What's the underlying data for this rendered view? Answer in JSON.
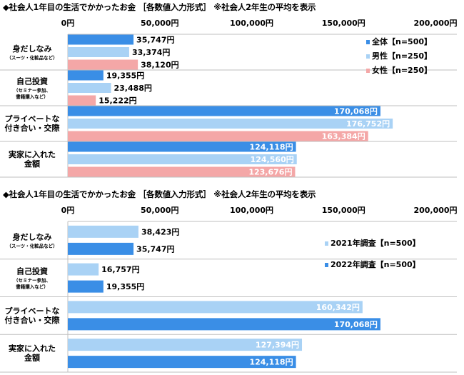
{
  "chart_data": [
    {
      "type": "bar",
      "orientation": "horizontal",
      "title": "◆社会人1年目の生活でかかったお金 ［各数値入力形式］ ※社会人2年生の平均を表示",
      "xlim": [
        0,
        200000
      ],
      "ticks": [
        "0円",
        "50,000円",
        "100,000円",
        "150,000円",
        "200,000円"
      ],
      "tick_values": [
        0,
        50000,
        100000,
        150000,
        200000
      ],
      "grid": "horizontal separators between categories",
      "legend_position": "top-right",
      "categories": [
        {
          "name": [
            "身だしなみ"
          ],
          "sub": [
            "（スーツ・化粧品など）"
          ]
        },
        {
          "name": [
            "自己投資"
          ],
          "sub": [
            "（セミナー参加、",
            "書籍購入など）"
          ]
        },
        {
          "name": [
            "プライベートな",
            "付き合い・交際"
          ],
          "sub": []
        },
        {
          "name": [
            "実家に入れた",
            "金額"
          ],
          "sub": []
        }
      ],
      "series": [
        {
          "name": "全体【n=500】",
          "color": "#3a8ee6",
          "values": [
            35747,
            19355,
            170068,
            124118
          ],
          "labels": [
            "35,747円",
            "19,355円",
            "170,068円",
            "124,118円"
          ]
        },
        {
          "name": "男性【n=250】",
          "color": "#a9d2f5",
          "values": [
            33374,
            23488,
            176752,
            124560
          ],
          "labels": [
            "33,374円",
            "23,488円",
            "176,752円",
            "124,560円"
          ]
        },
        {
          "name": "女性【n=250】",
          "color": "#f4a7a7",
          "values": [
            38120,
            15222,
            163384,
            123676
          ],
          "labels": [
            "38,120円",
            "15,222円",
            "163,384円",
            "123,676円"
          ]
        }
      ]
    },
    {
      "type": "bar",
      "orientation": "horizontal",
      "title": "◆社会人1年目の生活でかかったお金 ［各数値入力形式］ ※社会人2年生の平均を表示",
      "xlim": [
        0,
        200000
      ],
      "ticks": [
        "0円",
        "50,000円",
        "100,000円",
        "150,000円",
        "200,000円"
      ],
      "tick_values": [
        0,
        50000,
        100000,
        150000,
        200000
      ],
      "grid": "horizontal separators between categories",
      "legend_position": "top-right",
      "categories": [
        {
          "name": [
            "身だしなみ"
          ],
          "sub": [
            "（スーツ・化粧品など）"
          ]
        },
        {
          "name": [
            "自己投資"
          ],
          "sub": [
            "（セミナー参加、",
            "書籍購入など）"
          ]
        },
        {
          "name": [
            "プライベートな",
            "付き合い・交際"
          ],
          "sub": []
        },
        {
          "name": [
            "実家に入れた",
            "金額"
          ],
          "sub": []
        }
      ],
      "series": [
        {
          "name": "2021年調査【n=500】",
          "color": "#a9d2f5",
          "values": [
            38423,
            16757,
            160342,
            127394
          ],
          "labels": [
            "38,423円",
            "16,757円",
            "160,342円",
            "127,394円"
          ]
        },
        {
          "name": "2022年調査【n=500】",
          "color": "#3a8ee6",
          "values": [
            35747,
            19355,
            170068,
            124118
          ],
          "labels": [
            "35,747円",
            "19,355円",
            "170,068円",
            "124,118円"
          ]
        }
      ]
    }
  ]
}
